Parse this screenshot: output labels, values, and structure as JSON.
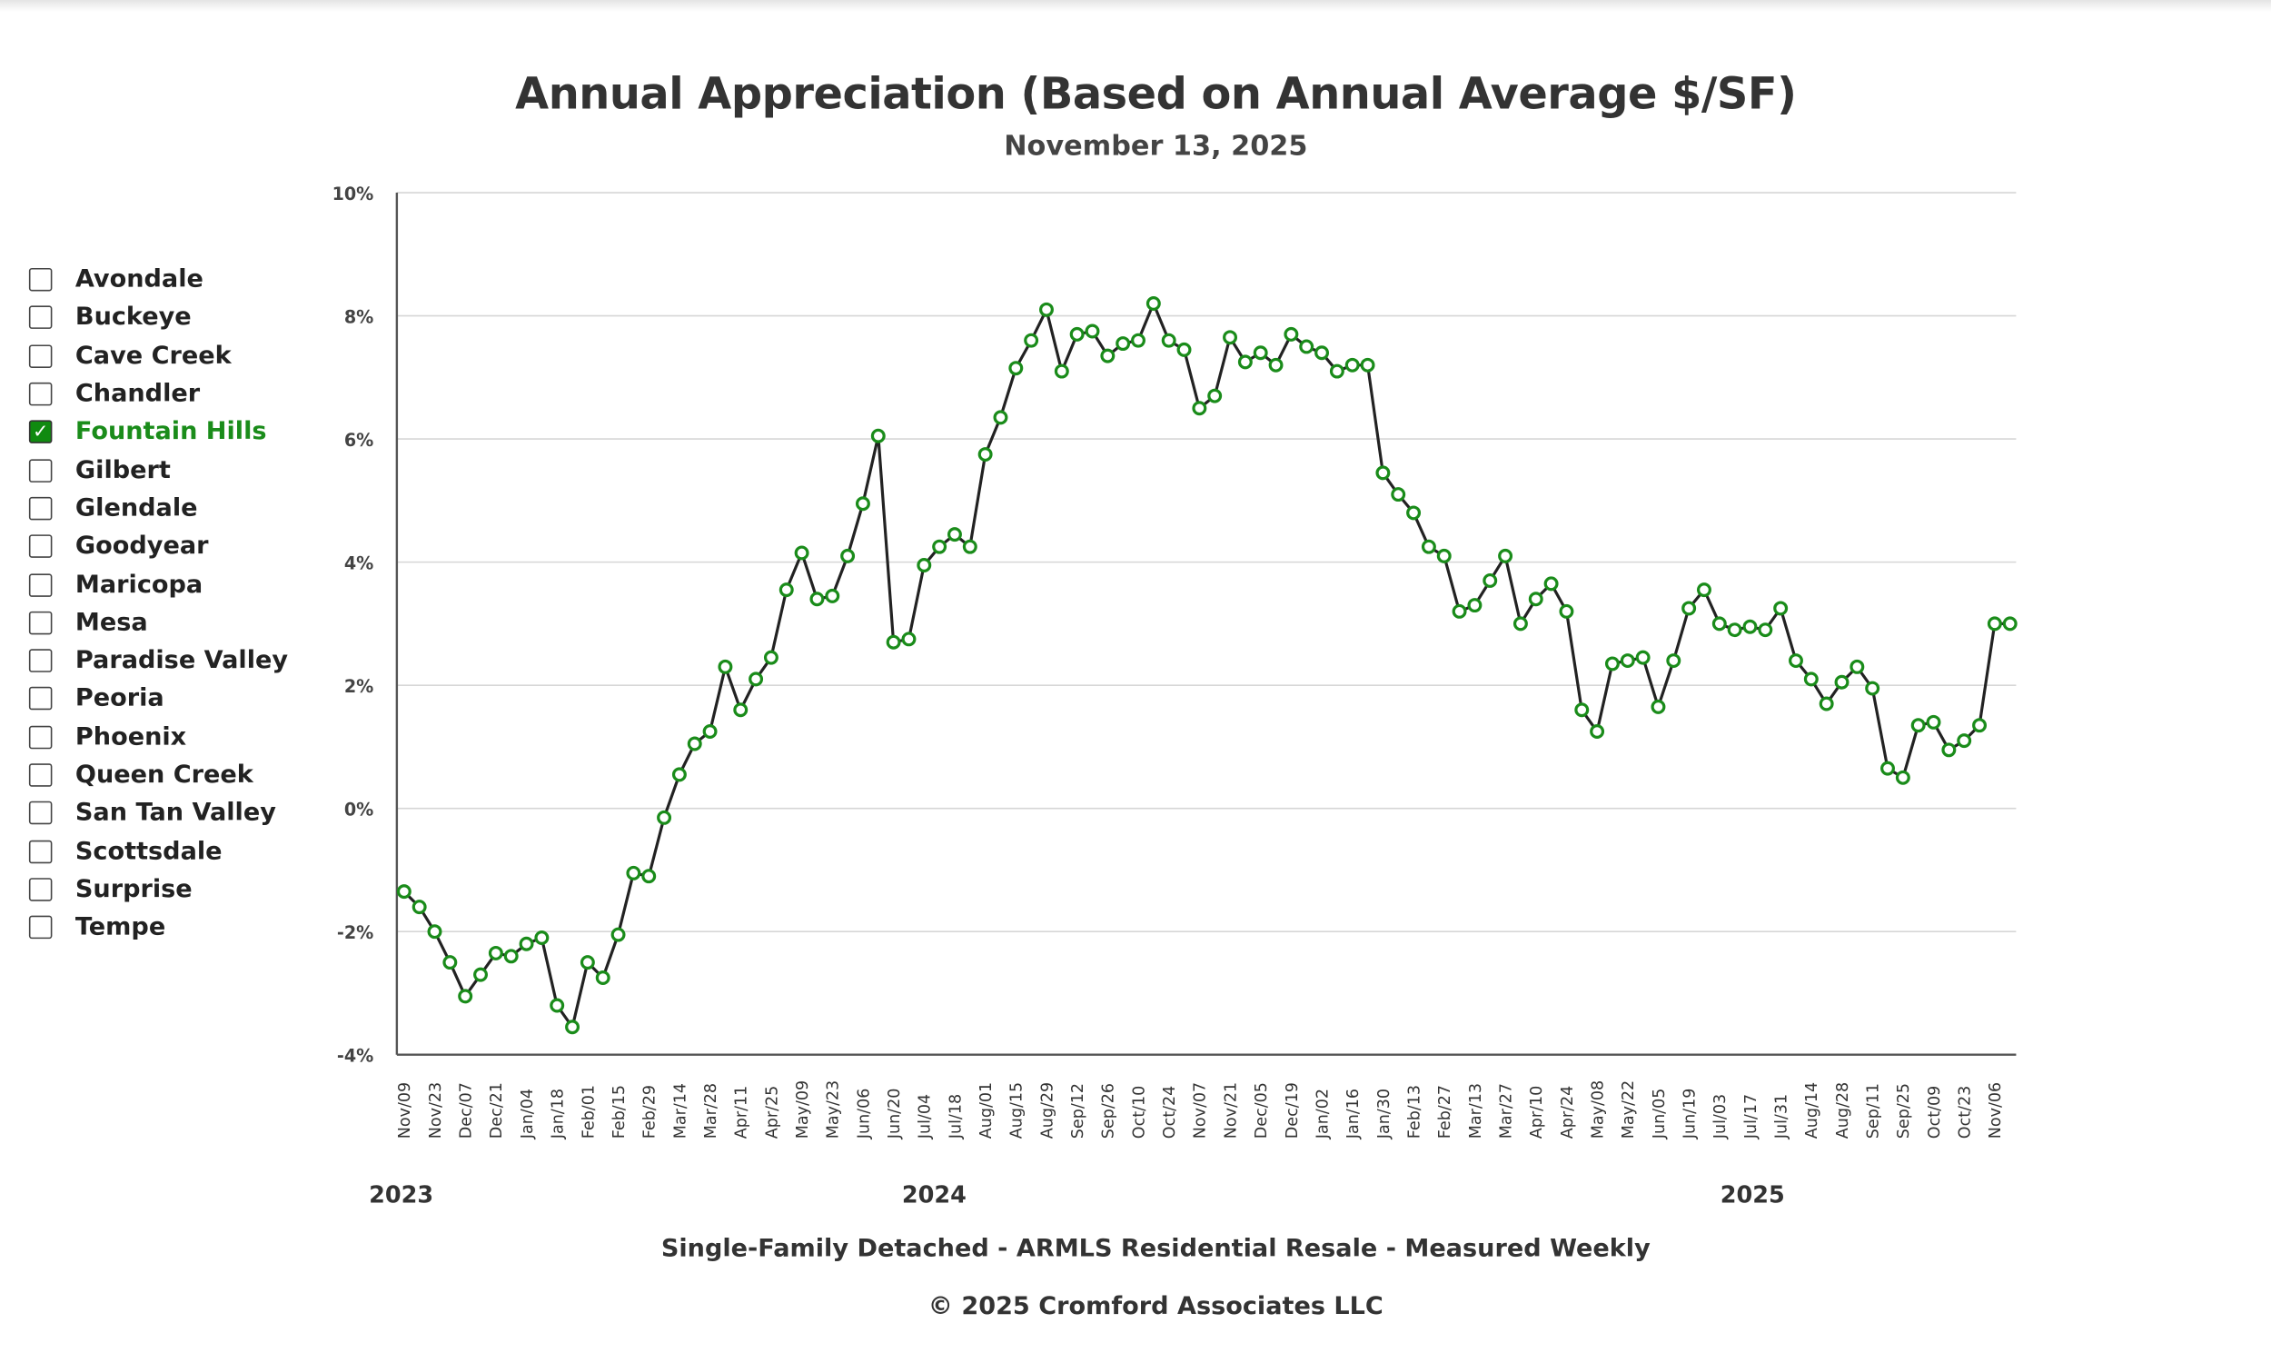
{
  "chart_data": {
    "type": "line",
    "title": "Annual Appreciation (Based on Annual Average $/SF)",
    "subtitle": "November 13, 2025",
    "ylim": [
      -4,
      10
    ],
    "yticks": [
      "-4%",
      "-2%",
      "0%",
      "2%",
      "4%",
      "6%",
      "8%",
      "10%"
    ],
    "ytick_values": [
      -4,
      -2,
      0,
      2,
      4,
      6,
      8,
      10
    ],
    "grid": true,
    "xtick_labels": [
      "Nov/09",
      "Nov/23",
      "Dec/07",
      "Dec/21",
      "Jan/04",
      "Jan/18",
      "Feb/01",
      "Feb/15",
      "Feb/29",
      "Mar/14",
      "Mar/28",
      "Apr/11",
      "Apr/25",
      "May/09",
      "May/23",
      "Jun/06",
      "Jun/20",
      "Jul/04",
      "Jul/18",
      "Aug/01",
      "Aug/15",
      "Aug/29",
      "Sep/12",
      "Sep/26",
      "Oct/10",
      "Oct/24",
      "Nov/07",
      "Nov/21",
      "Dec/05",
      "Dec/19",
      "Jan/02",
      "Jan/16",
      "Jan/30",
      "Feb/13",
      "Feb/27",
      "Mar/13",
      "Mar/27",
      "Apr/10",
      "Apr/24",
      "May/08",
      "May/22",
      "Jun/05",
      "Jun/19",
      "Jul/03",
      "Jul/17",
      "Jul/31",
      "Aug/14",
      "Aug/28",
      "Sep/11",
      "Sep/25",
      "Oct/09",
      "Oct/23",
      "Nov/06"
    ],
    "year_labels": [
      "2023",
      "2024",
      "2025"
    ],
    "line_color": "#222222",
    "marker_color": "#1a8c1a",
    "series": [
      {
        "name": "Fountain Hills",
        "values": [
          -1.35,
          -1.6,
          -2.0,
          -2.5,
          -3.05,
          -2.7,
          -2.35,
          -2.4,
          -2.2,
          -2.1,
          -3.2,
          -3.55,
          -2.5,
          -2.75,
          -2.05,
          -1.05,
          -1.1,
          -0.15,
          0.55,
          1.05,
          1.25,
          2.3,
          1.6,
          2.1,
          2.45,
          3.55,
          4.15,
          3.4,
          3.45,
          4.1,
          4.95,
          6.05,
          2.7,
          2.75,
          3.95,
          4.25,
          4.45,
          4.25,
          5.75,
          6.35,
          7.15,
          7.6,
          8.1,
          7.1,
          7.7,
          7.75,
          7.35,
          7.55,
          7.6,
          8.2,
          7.6,
          7.45,
          6.5,
          6.7,
          7.65,
          7.25,
          7.4,
          7.2,
          7.7,
          7.5,
          7.4,
          7.1,
          7.2,
          7.2,
          5.45,
          5.1,
          4.8,
          4.25,
          4.1,
          3.2,
          3.3,
          3.7,
          4.1,
          3.0,
          3.4,
          3.65,
          3.2,
          1.6,
          1.25,
          2.35,
          2.4,
          2.45,
          1.65,
          2.4,
          3.25,
          3.55,
          3.0,
          2.9,
          2.95,
          2.9,
          3.25,
          2.4,
          2.1,
          1.7,
          2.05,
          2.3,
          1.95,
          0.65,
          0.5,
          1.35,
          1.4,
          0.95,
          1.1,
          1.35,
          3.0,
          3.0
        ]
      }
    ]
  },
  "legend": {
    "items": [
      {
        "label": "Avondale",
        "checked": false
      },
      {
        "label": "Buckeye",
        "checked": false
      },
      {
        "label": "Cave Creek",
        "checked": false
      },
      {
        "label": "Chandler",
        "checked": false
      },
      {
        "label": "Fountain Hills",
        "checked": true
      },
      {
        "label": "Gilbert",
        "checked": false
      },
      {
        "label": "Glendale",
        "checked": false
      },
      {
        "label": "Goodyear",
        "checked": false
      },
      {
        "label": "Maricopa",
        "checked": false
      },
      {
        "label": "Mesa",
        "checked": false
      },
      {
        "label": "Paradise Valley",
        "checked": false
      },
      {
        "label": "Peoria",
        "checked": false
      },
      {
        "label": "Phoenix",
        "checked": false
      },
      {
        "label": "Queen Creek",
        "checked": false
      },
      {
        "label": "San Tan Valley",
        "checked": false
      },
      {
        "label": "Scottsdale",
        "checked": false
      },
      {
        "label": "Surprise",
        "checked": false
      },
      {
        "label": "Tempe",
        "checked": false
      }
    ],
    "check_icon": "checkmark-icon",
    "accent_color": "#1a8c1a"
  },
  "footer": {
    "description": "Single-Family Detached - ARMLS Residential Resale - Measured Weekly",
    "copyright": "© 2025 Cromford Associates LLC"
  }
}
